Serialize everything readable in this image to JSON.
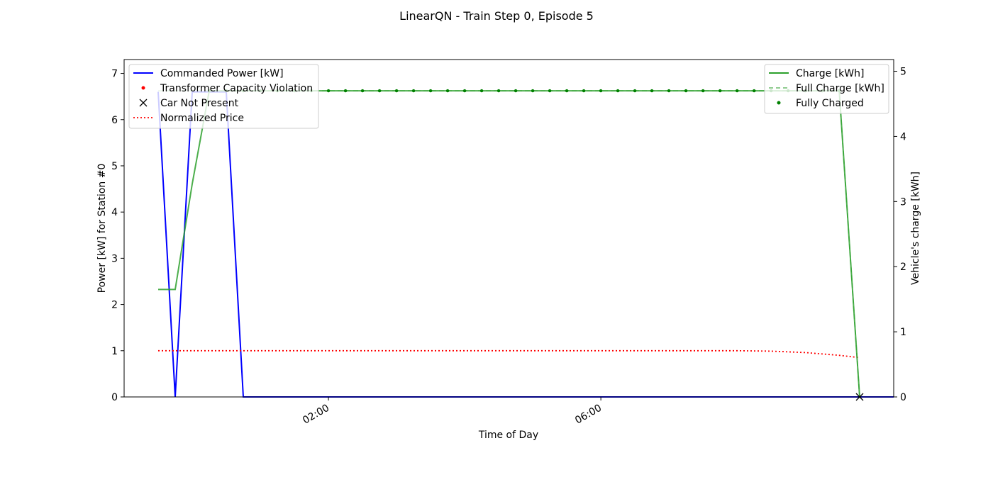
{
  "chart_data": {
    "type": "line",
    "title": "LinearQN - Train Step 0, Episode 5",
    "xlabel": "Time of Day",
    "ylabel_left": "Power [kW] for Station #0",
    "ylabel_right": "Vehicle's charge [kWh]",
    "x_unit": "hours after midnight",
    "xlim": [
      -1.0,
      10.3
    ],
    "ylim_left": [
      0,
      7.3
    ],
    "ylim_right": [
      0,
      5.18
    ],
    "x_ticks": [
      {
        "value": 2,
        "label": "02:00"
      },
      {
        "value": 6,
        "label": "06:00"
      }
    ],
    "y_ticks_left": [
      0,
      1,
      2,
      3,
      4,
      5,
      6,
      7
    ],
    "y_ticks_right": [
      0,
      1,
      2,
      3,
      4,
      5
    ],
    "grid": false,
    "legend_left_position": "upper-left",
    "legend_right_position": "upper-right",
    "legend_left": [
      {
        "label": "Commanded Power [kW]",
        "color": "#0000ff",
        "style": "solid-line"
      },
      {
        "label": "Transformer Capacity Violation",
        "color": "#ff0000",
        "style": "dot"
      },
      {
        "label": "Car Not Present",
        "color": "#000000",
        "style": "x-marker"
      },
      {
        "label": "Normalized Price",
        "color": "#ff0000",
        "style": "dotted-line"
      }
    ],
    "legend_right": [
      {
        "label": "Charge [kWh]",
        "color": "#2ca02c",
        "style": "solid-line"
      },
      {
        "label": "Full Charge [kWh]",
        "color": "#2ca02c",
        "style": "dashed-line"
      },
      {
        "label": "Fully Charged",
        "color": "#008000",
        "style": "dot"
      }
    ],
    "series": [
      {
        "name": "Commanded Power [kW]",
        "axis": "left",
        "color": "#0000ff",
        "x": [
          -0.5,
          -0.25,
          0.0,
          0.25,
          0.5,
          0.75,
          10.3
        ],
        "y": [
          6.6,
          0,
          6.6,
          6.6,
          6.6,
          0,
          0
        ]
      },
      {
        "name": "Normalized Price",
        "axis": "left",
        "color": "#ff0000",
        "x": [
          -0.5,
          0,
          1,
          2,
          3,
          4,
          5,
          6,
          7,
          7.5,
          8.0,
          8.5,
          9.0,
          9.5,
          9.8
        ],
        "y": [
          1.0,
          1.0,
          1.0,
          1.0,
          1.0,
          1.0,
          1.0,
          1.0,
          1.0,
          1.0,
          1.0,
          0.99,
          0.96,
          0.9,
          0.85
        ]
      },
      {
        "name": "Charge [kWh]",
        "axis": "right",
        "color": "#2ca02c",
        "x": [
          -0.5,
          -0.25,
          0.0,
          0.25,
          9.5,
          9.8
        ],
        "y": [
          1.65,
          1.65,
          3.27,
          4.7,
          4.7,
          0
        ]
      },
      {
        "name": "Full Charge [kWh]",
        "axis": "right",
        "color": "#2ca02c",
        "x": [
          -0.5,
          9.5,
          9.8
        ],
        "y": [
          4.7,
          4.7,
          0
        ]
      }
    ],
    "fully_charged_points": {
      "axis": "right",
      "color": "#008000",
      "x_start": 0.25,
      "x_end": 9.5,
      "step": 0.25,
      "y": 4.7
    },
    "car_not_present_points": {
      "axis": "left",
      "color": "#000000",
      "x": [
        9.8
      ],
      "y": [
        0
      ]
    }
  }
}
